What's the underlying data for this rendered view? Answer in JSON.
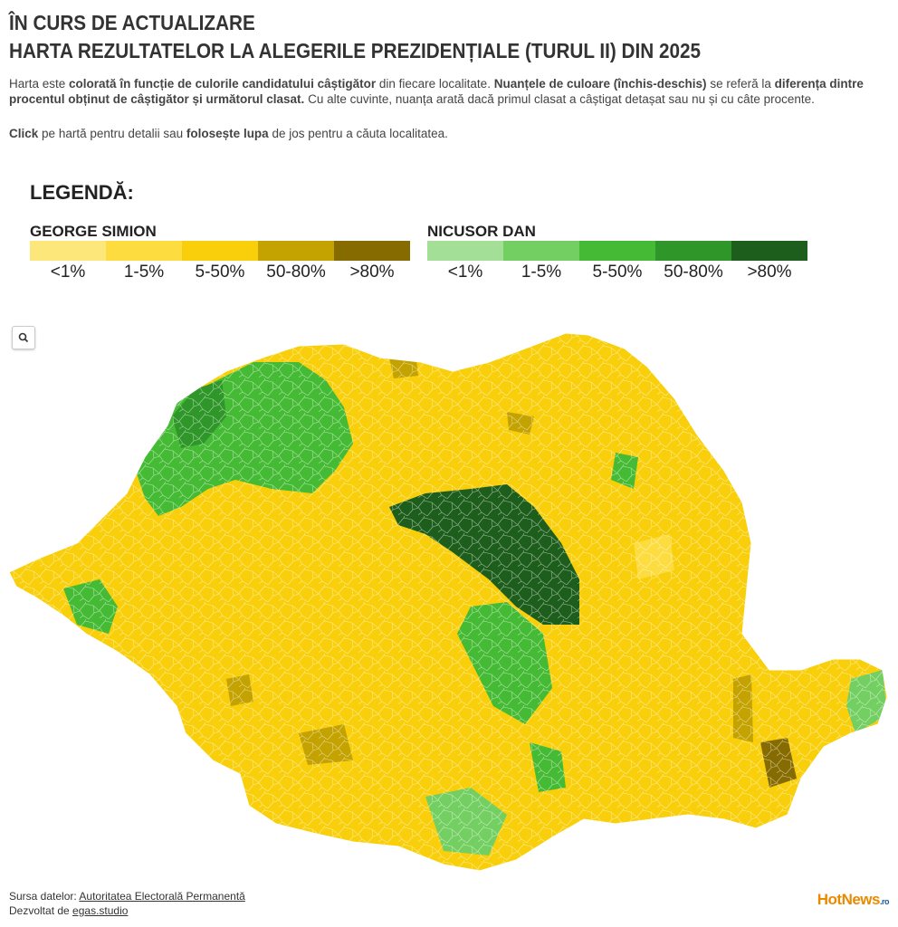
{
  "header": {
    "title_line1": "ÎN CURS DE ACTUALIZARE",
    "title_line2": "HARTA REZULTATELOR LA ALEGERILE PREZIDENȚIALE (TURUL II) DIN 2025"
  },
  "intro": {
    "paragraph1": [
      "Harta este",
      "colorată în funcție de culorile candidatului câștigător",
      "din fiecare localitate.",
      "Nuanțele de culoare (închis-deschis)",
      "se referă la",
      "diferența dintre procentul obținut de câștigător și următorul clasat.",
      "Cu alte cuvinte, nuanța arată dacă primul clasat a câștigat detașat sau nu și cu câte procente."
    ],
    "paragraph2": [
      "Click",
      "pe hartă pentru detalii sau",
      "folosește lupa",
      "de jos pentru a căuta localitatea."
    ]
  },
  "legend": {
    "title": "LEGENDĂ:",
    "groups": [
      {
        "name": "GEORGE SIMION",
        "colors": [
          "#fde67a",
          "#fcdc3f",
          "#f8cf0a",
          "#c4a200",
          "#866c00"
        ],
        "labels": [
          "<1%",
          "1-5%",
          "5-50%",
          "50-80%",
          ">80%"
        ]
      },
      {
        "name": "NICUSOR DAN",
        "colors": [
          "#a3df96",
          "#74cf62",
          "#45bb35",
          "#2f962a",
          "#1e5e1c"
        ],
        "labels": [
          "<1%",
          "1-5%",
          "5-50%",
          "50-80%",
          ">80%"
        ]
      }
    ]
  },
  "footer": {
    "source_label": "Sursa datelor:",
    "source_link": "Autoritatea Electorală Permanentă",
    "developer_label": "Dezvoltat de",
    "developer_link": "egas.studio",
    "logo": "HotNews",
    "logo_suffix": ".ro"
  }
}
